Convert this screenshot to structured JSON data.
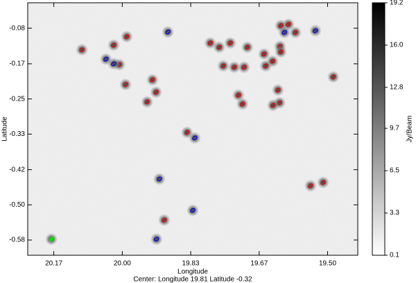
{
  "chart_data": {
    "type": "scatter",
    "xlabel": "Longitude",
    "ylabel": "Latitude",
    "colorbar_label": "Jy/Beam",
    "footer": "Center:  Longitude 19.81 Latitude -0.32",
    "xlim": [
      20.23,
      19.42
    ],
    "ylim": [
      -0.619,
      -0.023
    ],
    "xticks": [
      {
        "value": 20.166,
        "label": "20.17"
      },
      {
        "value": 19.998,
        "label": "20.00"
      },
      {
        "value": 19.83,
        "label": "19.83"
      },
      {
        "value": 19.662,
        "label": "19.67"
      },
      {
        "value": 19.494,
        "label": "19.50"
      }
    ],
    "yticks": [
      {
        "value": -0.083,
        "label": "-0.08"
      },
      {
        "value": -0.167,
        "label": "-0.17"
      },
      {
        "value": -0.25,
        "label": "-0.25"
      },
      {
        "value": -0.333,
        "label": "-0.33"
      },
      {
        "value": -0.417,
        "label": "-0.42"
      },
      {
        "value": -0.5,
        "label": "-0.50"
      },
      {
        "value": -0.583,
        "label": "-0.58"
      }
    ],
    "clim": [
      0.1,
      19.2
    ],
    "cticks": [
      0.1,
      3.3,
      6.5,
      9.7,
      12.8,
      {
        "value": 16,
        "label": "16.0"
      },
      19.2
    ],
    "series": [
      {
        "color": "#e00000",
        "x": [
          20.097,
          19.987,
          20.019,
          20.005,
          19.99,
          19.924,
          19.915,
          19.937,
          19.839,
          19.782,
          19.76,
          19.733,
          19.691,
          19.75,
          19.723,
          19.699,
          19.713,
          19.703,
          19.65,
          19.629,
          19.646,
          19.609,
          19.59,
          19.573,
          19.611,
          19.609,
          19.616,
          19.612,
          19.628,
          19.48,
          19.536,
          19.505,
          19.895
        ],
        "values": [
          -0.134,
          -0.103,
          -0.123,
          -0.169,
          -0.216,
          -0.205,
          -0.234,
          -0.257,
          -0.329,
          -0.118,
          -0.128,
          -0.118,
          -0.128,
          -0.172,
          -0.175,
          -0.175,
          -0.241,
          -0.262,
          -0.144,
          -0.161,
          -0.172,
          -0.077,
          -0.074,
          -0.093,
          -0.126,
          -0.139,
          -0.229,
          -0.259,
          -0.265,
          -0.198,
          -0.455,
          -0.447,
          -0.536
        ]
      },
      {
        "color": "#0000e0",
        "x": [
          19.886,
          20.038,
          20.019,
          19.82,
          19.907,
          19.825,
          19.914,
          19.524,
          19.6
        ],
        "values": [
          -0.092,
          -0.156,
          -0.167,
          -0.342,
          -0.439,
          -0.513,
          -0.581,
          -0.089,
          -0.093
        ]
      },
      {
        "color": "#00e000",
        "x": [
          20.172
        ],
        "values": [
          -0.581
        ]
      }
    ]
  }
}
